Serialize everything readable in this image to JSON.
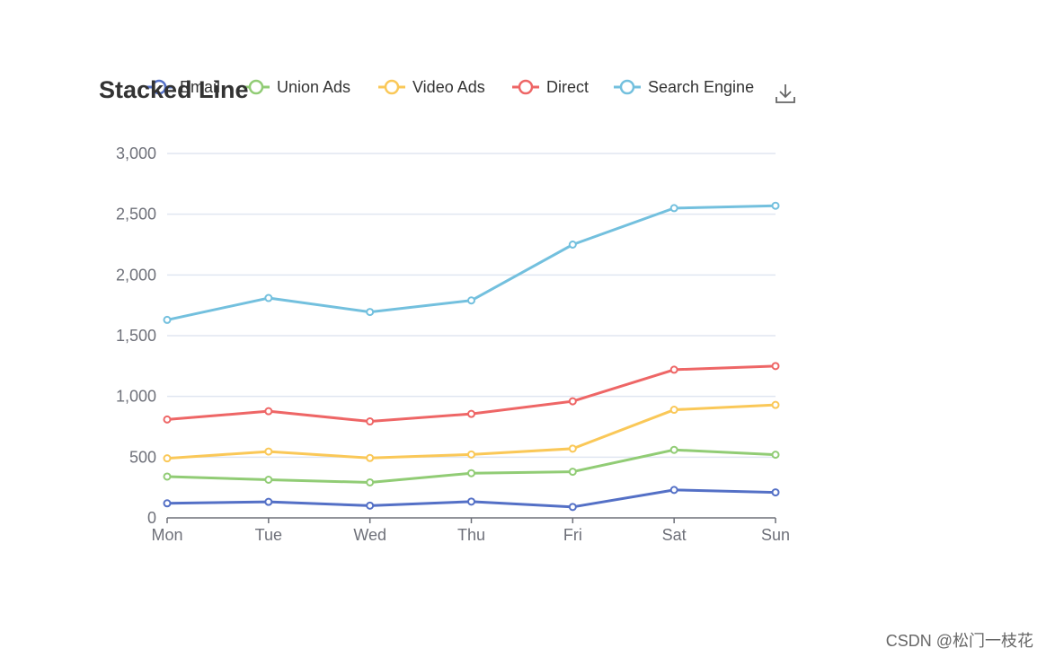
{
  "chart_data": {
    "type": "line",
    "title": "Stacked Line",
    "stacked": true,
    "categories": [
      "Mon",
      "Tue",
      "Wed",
      "Thu",
      "Fri",
      "Sat",
      "Sun"
    ],
    "ylim": [
      0,
      3000
    ],
    "yticks": [
      "0",
      "500",
      "1,000",
      "1,500",
      "2,000",
      "2,500",
      "3,000"
    ],
    "ytick_values": [
      0,
      500,
      1000,
      1500,
      2000,
      2500,
      3000
    ],
    "grid": true,
    "legend_position": "top",
    "series": [
      {
        "name": "Email",
        "color": "#5470c6",
        "values": [
          120,
          132,
          101,
          134,
          90,
          230,
          210
        ]
      },
      {
        "name": "Union Ads",
        "color": "#91cc75",
        "values": [
          220,
          182,
          191,
          234,
          290,
          330,
          310
        ]
      },
      {
        "name": "Video Ads",
        "color": "#fac858",
        "values": [
          150,
          232,
          201,
          154,
          190,
          330,
          410
        ]
      },
      {
        "name": "Direct",
        "color": "#ee6666",
        "values": [
          320,
          332,
          301,
          334,
          390,
          330,
          320
        ]
      },
      {
        "name": "Search Engine",
        "color": "#73c0de",
        "values": [
          820,
          932,
          901,
          934,
          1290,
          1330,
          1320
        ]
      }
    ]
  },
  "toolbox": {
    "save_icon": "download-icon"
  },
  "watermark": "CSDN @松门一枝花"
}
